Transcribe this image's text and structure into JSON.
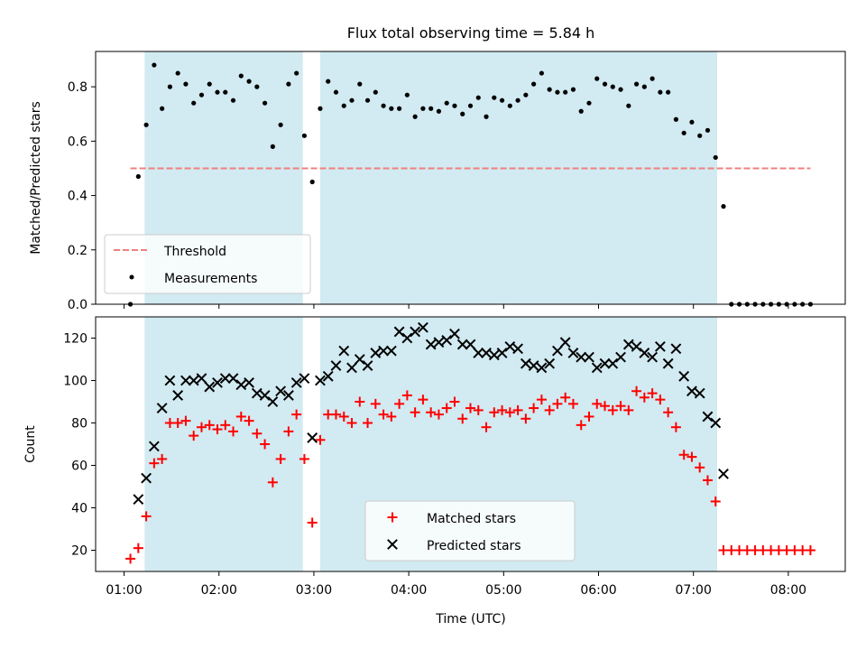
{
  "figure": {
    "title": "Flux total observing time = 5.84 h",
    "xlabel": "Time (UTC)"
  },
  "colors": {
    "shade": "#add8e6",
    "threshold": "#f08080",
    "measurements": "#000000",
    "matched": "#ff0000",
    "predicted": "#000000"
  },
  "chart_data": [
    {
      "type": "scatter",
      "title": "Flux total observing time = 5.84 h",
      "xlabel": "",
      "ylabel": "Matched/Predicted stars",
      "xlim": [
        "00:42",
        "08:36"
      ],
      "ylim": [
        0,
        0.93
      ],
      "x_ticks": [
        "01:00",
        "02:00",
        "03:00",
        "04:00",
        "05:00",
        "06:00",
        "07:00",
        "08:00"
      ],
      "y_ticks": [
        "0.0",
        "0.2",
        "0.4",
        "0.6",
        "0.8"
      ],
      "shaded_spans": [
        [
          "01:13",
          "02:53"
        ],
        [
          "03:04",
          "07:15"
        ]
      ],
      "legend_position": "lower-left",
      "legend": [
        "Threshold",
        "Measurements"
      ],
      "threshold": {
        "name": "Threshold",
        "value": 0.5,
        "x_range": [
          "01:04",
          "08:14"
        ]
      },
      "series": [
        {
          "name": "Measurements",
          "marker": "dot",
          "x": [
            "01:04",
            "01:09",
            "01:14",
            "01:19",
            "01:24",
            "01:29",
            "01:34",
            "01:39",
            "01:44",
            "01:49",
            "01:54",
            "01:59",
            "02:04",
            "02:09",
            "02:14",
            "02:19",
            "02:24",
            "02:29",
            "02:34",
            "02:39",
            "02:44",
            "02:49",
            "02:54",
            "02:59",
            "03:04",
            "03:09",
            "03:14",
            "03:19",
            "03:24",
            "03:29",
            "03:34",
            "03:39",
            "03:44",
            "03:49",
            "03:54",
            "03:59",
            "04:04",
            "04:09",
            "04:14",
            "04:19",
            "04:24",
            "04:29",
            "04:34",
            "04:39",
            "04:44",
            "04:49",
            "04:54",
            "04:59",
            "05:04",
            "05:09",
            "05:14",
            "05:19",
            "05:24",
            "05:29",
            "05:34",
            "05:39",
            "05:44",
            "05:49",
            "05:54",
            "05:59",
            "06:04",
            "06:09",
            "06:14",
            "06:19",
            "06:24",
            "06:29",
            "06:34",
            "06:39",
            "06:44",
            "06:49",
            "06:54",
            "06:59",
            "07:04",
            "07:09",
            "07:14",
            "07:19",
            "07:24",
            "07:29",
            "07:34",
            "07:39",
            "07:44",
            "07:49",
            "07:54",
            "07:59",
            "08:04",
            "08:09",
            "08:14"
          ],
          "y": [
            0.0,
            0.47,
            0.66,
            0.88,
            0.72,
            0.8,
            0.85,
            0.81,
            0.74,
            0.77,
            0.81,
            0.78,
            0.78,
            0.75,
            0.84,
            0.82,
            0.8,
            0.74,
            0.58,
            0.66,
            0.81,
            0.85,
            0.62,
            0.45,
            0.72,
            0.82,
            0.78,
            0.73,
            0.75,
            0.81,
            0.75,
            0.78,
            0.73,
            0.72,
            0.72,
            0.77,
            0.69,
            0.72,
            0.72,
            0.71,
            0.74,
            0.73,
            0.7,
            0.73,
            0.76,
            0.69,
            0.76,
            0.75,
            0.73,
            0.75,
            0.77,
            0.81,
            0.85,
            0.79,
            0.78,
            0.78,
            0.79,
            0.71,
            0.74,
            0.83,
            0.81,
            0.8,
            0.79,
            0.73,
            0.81,
            0.8,
            0.83,
            0.78,
            0.78,
            0.68,
            0.63,
            0.67,
            0.62,
            0.64,
            0.54,
            0.36,
            0.0,
            0.0,
            0.0,
            0.0,
            0.0,
            0.0,
            0.0,
            0.0,
            0.0,
            0.0,
            0.0
          ]
        }
      ]
    },
    {
      "type": "scatter",
      "xlabel": "Time (UTC)",
      "ylabel": "Count",
      "xlim": [
        "00:42",
        "08:36"
      ],
      "ylim": [
        10,
        130
      ],
      "x_ticks": [
        "01:00",
        "02:00",
        "03:00",
        "04:00",
        "05:00",
        "06:00",
        "07:00",
        "08:00"
      ],
      "y_ticks": [
        "20",
        "40",
        "60",
        "80",
        "100",
        "120"
      ],
      "shaded_spans": [
        [
          "01:13",
          "02:53"
        ],
        [
          "03:04",
          "07:15"
        ]
      ],
      "legend_position": "lower-center",
      "legend": [
        "Matched stars",
        "Predicted stars"
      ],
      "series": [
        {
          "name": "Matched stars",
          "marker": "plus",
          "x": [
            "01:04",
            "01:09",
            "01:14",
            "01:19",
            "01:24",
            "01:29",
            "01:34",
            "01:39",
            "01:44",
            "01:49",
            "01:54",
            "01:59",
            "02:04",
            "02:09",
            "02:14",
            "02:19",
            "02:24",
            "02:29",
            "02:34",
            "02:39",
            "02:44",
            "02:49",
            "02:54",
            "02:59",
            "03:04",
            "03:09",
            "03:14",
            "03:19",
            "03:24",
            "03:29",
            "03:34",
            "03:39",
            "03:44",
            "03:49",
            "03:54",
            "03:59",
            "04:04",
            "04:09",
            "04:14",
            "04:19",
            "04:24",
            "04:29",
            "04:34",
            "04:39",
            "04:44",
            "04:49",
            "04:54",
            "04:59",
            "05:04",
            "05:09",
            "05:14",
            "05:19",
            "05:24",
            "05:29",
            "05:34",
            "05:39",
            "05:44",
            "05:49",
            "05:54",
            "05:59",
            "06:04",
            "06:09",
            "06:14",
            "06:19",
            "06:24",
            "06:29",
            "06:34",
            "06:39",
            "06:44",
            "06:49",
            "06:54",
            "06:59",
            "07:04",
            "07:09",
            "07:14",
            "07:19",
            "07:24",
            "07:29",
            "07:34",
            "07:39",
            "07:44",
            "07:49",
            "07:54",
            "07:59",
            "08:04",
            "08:09",
            "08:14"
          ],
          "y": [
            16,
            21,
            36,
            61,
            63,
            80,
            80,
            81,
            74,
            78,
            79,
            77,
            79,
            76,
            83,
            81,
            75,
            70,
            52,
            63,
            76,
            84,
            63,
            33,
            72,
            84,
            84,
            83,
            80,
            90,
            80,
            89,
            84,
            83,
            89,
            93,
            85,
            91,
            85,
            84,
            87,
            90,
            82,
            87,
            86,
            78,
            85,
            86,
            85,
            86,
            82,
            87,
            91,
            86,
            89,
            92,
            89,
            79,
            83,
            89,
            88,
            86,
            88,
            86,
            95,
            92,
            94,
            91,
            85,
            78,
            65,
            64,
            59,
            53,
            43,
            20,
            20,
            20,
            20,
            20,
            20,
            20,
            20,
            20,
            20,
            20,
            20
          ]
        },
        {
          "name": "Predicted stars",
          "marker": "cross",
          "x": [
            "01:09",
            "01:14",
            "01:19",
            "01:24",
            "01:29",
            "01:34",
            "01:39",
            "01:44",
            "01:49",
            "01:54",
            "01:59",
            "02:04",
            "02:09",
            "02:14",
            "02:19",
            "02:24",
            "02:29",
            "02:34",
            "02:39",
            "02:44",
            "02:49",
            "02:54",
            "02:59",
            "03:04",
            "03:09",
            "03:14",
            "03:19",
            "03:24",
            "03:29",
            "03:34",
            "03:39",
            "03:44",
            "03:49",
            "03:54",
            "03:59",
            "04:04",
            "04:09",
            "04:14",
            "04:19",
            "04:24",
            "04:29",
            "04:34",
            "04:39",
            "04:44",
            "04:49",
            "04:54",
            "04:59",
            "05:04",
            "05:09",
            "05:14",
            "05:19",
            "05:24",
            "05:29",
            "05:34",
            "05:39",
            "05:44",
            "05:49",
            "05:54",
            "05:59",
            "06:04",
            "06:09",
            "06:14",
            "06:19",
            "06:24",
            "06:29",
            "06:34",
            "06:39",
            "06:44",
            "06:49",
            "06:54",
            "06:59",
            "07:04",
            "07:09",
            "07:14",
            "07:19"
          ],
          "y": [
            44,
            54,
            69,
            87,
            100,
            93,
            100,
            100,
            101,
            97,
            99,
            101,
            101,
            98,
            99,
            94,
            93,
            90,
            95,
            93,
            99,
            101,
            73,
            100,
            102,
            107,
            114,
            106,
            110,
            107,
            113,
            114,
            114,
            123,
            120,
            123,
            125,
            117,
            118,
            119,
            122,
            117,
            117,
            113,
            113,
            112,
            113,
            116,
            115,
            108,
            107,
            106,
            108,
            114,
            118,
            113,
            111,
            111,
            106,
            108,
            108,
            111,
            117,
            116,
            113,
            111,
            116,
            108,
            115,
            102,
            95,
            94,
            83,
            80,
            56
          ]
        }
      ]
    }
  ]
}
